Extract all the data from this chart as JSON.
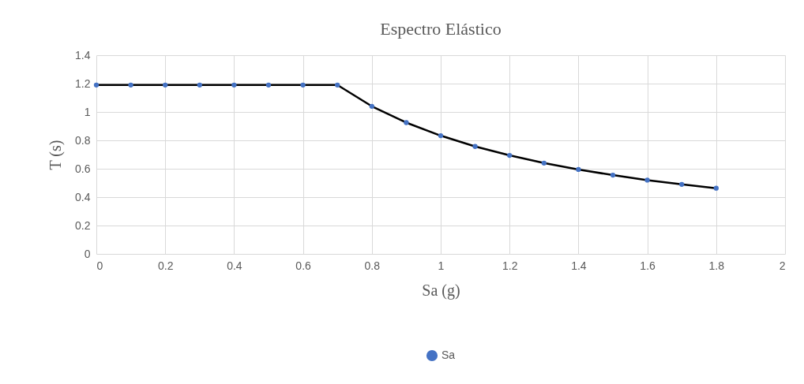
{
  "chart_data": {
    "type": "line",
    "title": "Espectro Elástico",
    "xlabel": "Sa (g)",
    "ylabel": "T (s)",
    "x": [
      0,
      0.1,
      0.2,
      0.3,
      0.4,
      0.5,
      0.6,
      0.7,
      0.8,
      0.9,
      1.0,
      1.1,
      1.2,
      1.3,
      1.4,
      1.5,
      1.6,
      1.7,
      1.8
    ],
    "series": [
      {
        "color": "#000000",
        "marker": "none",
        "values": [
          1.19,
          1.19,
          1.19,
          1.19,
          1.19,
          1.19,
          1.19,
          1.19,
          1.04,
          0.925,
          0.833,
          0.757,
          0.694,
          0.64,
          0.595,
          0.555,
          0.52,
          0.49,
          0.463
        ]
      },
      {
        "type": "scatter",
        "name": "Sa",
        "color": "#4472c4",
        "marker": "circle",
        "values": [
          1.19,
          1.19,
          1.19,
          1.19,
          1.19,
          1.19,
          1.19,
          1.19,
          1.04,
          0.925,
          0.833,
          0.757,
          0.694,
          0.64,
          0.595,
          0.555,
          0.52,
          0.49,
          0.463
        ]
      }
    ],
    "xlim": [
      0,
      2
    ],
    "xticks": [
      0,
      0.2,
      0.4,
      0.6,
      0.8,
      1,
      1.2,
      1.4,
      1.6,
      1.8,
      2
    ],
    "ylim": [
      0,
      1.4
    ],
    "yticks": [
      0,
      0.2,
      0.4,
      0.6,
      0.8,
      1,
      1.2,
      1.4
    ],
    "grid": true,
    "legend": "bottom"
  }
}
